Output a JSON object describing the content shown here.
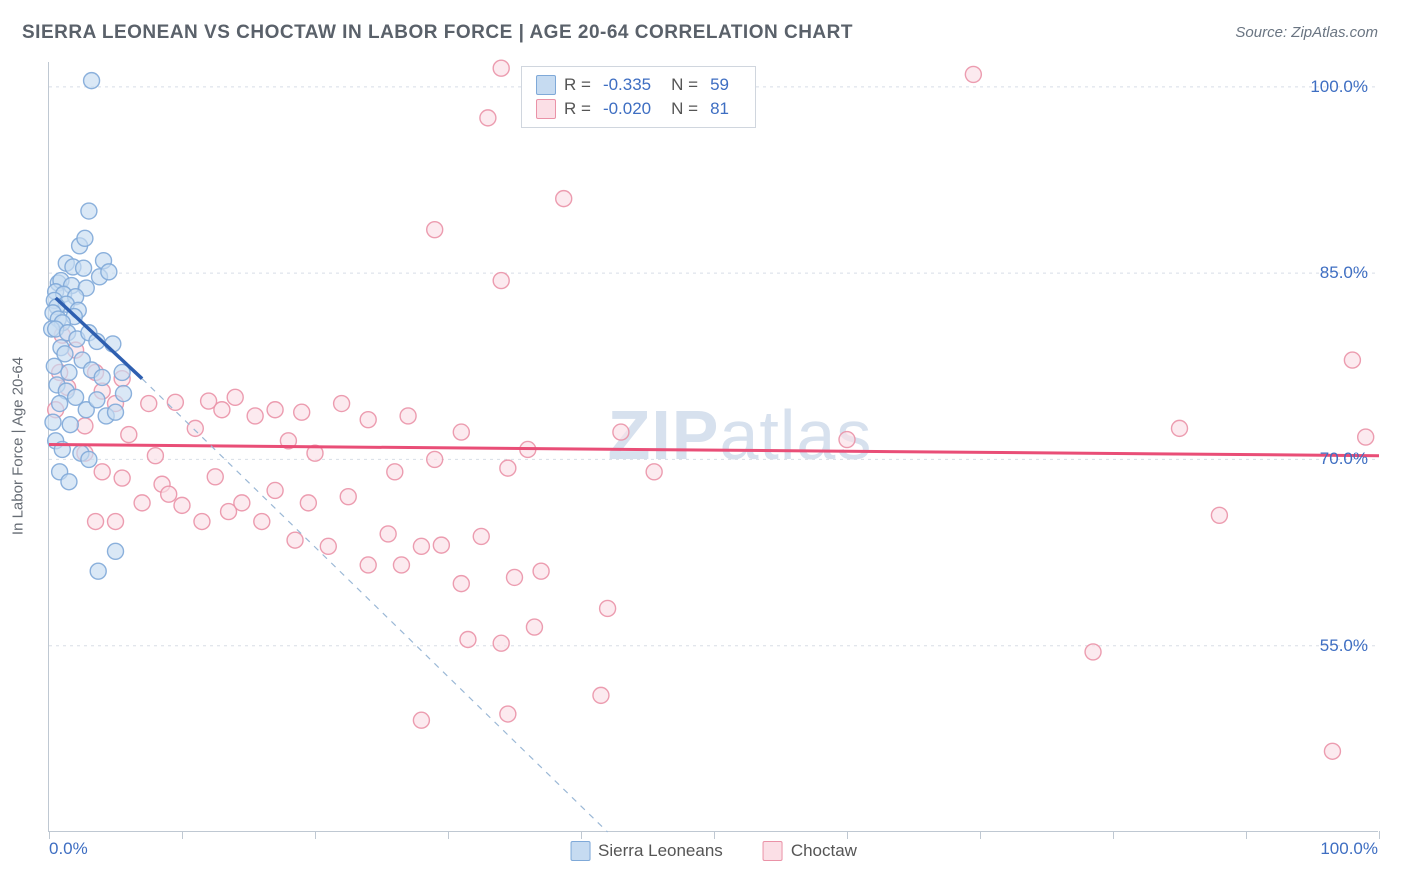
{
  "title": "SIERRA LEONEAN VS CHOCTAW IN LABOR FORCE | AGE 20-64 CORRELATION CHART",
  "source_label": "Source: ",
  "source_value": "ZipAtlas.com",
  "y_axis_label": "In Labor Force | Age 20-64",
  "chart": {
    "type": "scatter",
    "xlim": [
      0,
      100
    ],
    "ylim": [
      40,
      102
    ],
    "x_tick_step": 10,
    "y_grid": [
      55,
      70,
      85,
      100
    ],
    "x_min_label": "0.0%",
    "x_max_label": "100.0%",
    "y_tick_labels": {
      "55": "55.0%",
      "70": "70.0%",
      "85": "85.0%",
      "100": "100.0%"
    },
    "background_color": "#ffffff",
    "grid_color": "#d8dee6",
    "axis_color": "#bfc8d2",
    "marker_radius": 8,
    "marker_stroke_width": 1.4,
    "series": {
      "sierra": {
        "label": "Sierra Leoneans",
        "fill": "#c6dbf1",
        "stroke": "#7fa9d8",
        "line_color": "#2e5fb0",
        "dash_color": "#9bb8d6",
        "r_value": "-0.335",
        "n_value": "59",
        "points": [
          [
            3.2,
            100.5
          ],
          [
            3.0,
            90.0
          ],
          [
            2.3,
            87.2
          ],
          [
            2.7,
            87.8
          ],
          [
            4.1,
            86.0
          ],
          [
            1.3,
            85.8
          ],
          [
            1.8,
            85.5
          ],
          [
            2.6,
            85.4
          ],
          [
            3.8,
            84.7
          ],
          [
            4.5,
            85.1
          ],
          [
            0.7,
            84.2
          ],
          [
            0.9,
            84.4
          ],
          [
            1.7,
            84.0
          ],
          [
            2.8,
            83.8
          ],
          [
            0.5,
            83.5
          ],
          [
            1.1,
            83.3
          ],
          [
            2.0,
            83.1
          ],
          [
            0.4,
            82.8
          ],
          [
            1.3,
            82.5
          ],
          [
            0.6,
            82.3
          ],
          [
            2.2,
            82.0
          ],
          [
            0.3,
            81.8
          ],
          [
            1.9,
            81.5
          ],
          [
            0.7,
            81.3
          ],
          [
            1.0,
            81.0
          ],
          [
            0.2,
            80.5
          ],
          [
            0.5,
            80.5
          ],
          [
            1.4,
            80.2
          ],
          [
            2.1,
            79.7
          ],
          [
            3.0,
            80.2
          ],
          [
            3.6,
            79.5
          ],
          [
            0.9,
            79.0
          ],
          [
            1.2,
            78.5
          ],
          [
            2.5,
            78.0
          ],
          [
            0.4,
            77.5
          ],
          [
            1.5,
            77.0
          ],
          [
            3.2,
            77.2
          ],
          [
            4.0,
            76.6
          ],
          [
            5.5,
            77.0
          ],
          [
            4.8,
            79.3
          ],
          [
            0.6,
            76.0
          ],
          [
            1.3,
            75.5
          ],
          [
            2.0,
            75.0
          ],
          [
            0.8,
            74.5
          ],
          [
            2.8,
            74.0
          ],
          [
            3.6,
            74.8
          ],
          [
            4.3,
            73.5
          ],
          [
            0.3,
            73.0
          ],
          [
            1.6,
            72.8
          ],
          [
            5.0,
            73.8
          ],
          [
            5.6,
            75.3
          ],
          [
            0.5,
            71.5
          ],
          [
            1.0,
            70.8
          ],
          [
            2.4,
            70.5
          ],
          [
            3.0,
            70.0
          ],
          [
            0.8,
            69.0
          ],
          [
            1.5,
            68.2
          ],
          [
            5.0,
            62.6
          ],
          [
            3.7,
            61.0
          ]
        ],
        "regression_solid": {
          "x1": 0.5,
          "y1": 83.0,
          "x2": 7.0,
          "y2": 76.5
        },
        "regression_dashed": {
          "x1": 7.0,
          "y1": 76.5,
          "x2": 42.0,
          "y2": 40.0
        }
      },
      "choctaw": {
        "label": "Choctaw",
        "fill": "#fbdfe6",
        "stroke": "#ea92a7",
        "line_color": "#e94e77",
        "r_value": "-0.020",
        "n_value": "81",
        "points": [
          [
            34.0,
            101.5
          ],
          [
            33.0,
            97.5
          ],
          [
            69.5,
            101.0
          ],
          [
            38.7,
            91.0
          ],
          [
            29.0,
            88.5
          ],
          [
            34.0,
            84.4
          ],
          [
            3.5,
            77.0
          ],
          [
            5.0,
            74.5
          ],
          [
            1.0,
            80.0
          ],
          [
            2.0,
            78.8
          ],
          [
            0.8,
            77.0
          ],
          [
            1.4,
            75.8
          ],
          [
            0.5,
            74.0
          ],
          [
            2.7,
            72.7
          ],
          [
            4.0,
            75.5
          ],
          [
            5.5,
            76.5
          ],
          [
            7.5,
            74.5
          ],
          [
            6.0,
            72.0
          ],
          [
            9.5,
            74.6
          ],
          [
            11.0,
            72.5
          ],
          [
            12.0,
            74.7
          ],
          [
            13.0,
            74.0
          ],
          [
            14.0,
            75.0
          ],
          [
            15.5,
            73.5
          ],
          [
            17.0,
            74.0
          ],
          [
            18.0,
            71.5
          ],
          [
            19.0,
            73.8
          ],
          [
            20.0,
            70.5
          ],
          [
            22.0,
            74.5
          ],
          [
            24.0,
            73.2
          ],
          [
            26.0,
            69.0
          ],
          [
            27.0,
            73.5
          ],
          [
            29.0,
            70.0
          ],
          [
            31.0,
            72.2
          ],
          [
            98.0,
            78.0
          ],
          [
            85.0,
            72.5
          ],
          [
            99.0,
            71.8
          ],
          [
            43.0,
            72.2
          ],
          [
            45.5,
            69.0
          ],
          [
            34.5,
            69.3
          ],
          [
            36.0,
            70.8
          ],
          [
            2.7,
            70.5
          ],
          [
            4.0,
            69.0
          ],
          [
            5.5,
            68.5
          ],
          [
            7.0,
            66.5
          ],
          [
            8.5,
            68.0
          ],
          [
            9.0,
            67.2
          ],
          [
            10.0,
            66.3
          ],
          [
            11.5,
            65.0
          ],
          [
            12.5,
            68.6
          ],
          [
            13.5,
            65.8
          ],
          [
            14.5,
            66.5
          ],
          [
            16.0,
            65.0
          ],
          [
            17.0,
            67.5
          ],
          [
            18.5,
            63.5
          ],
          [
            19.5,
            66.5
          ],
          [
            21.0,
            63.0
          ],
          [
            22.5,
            67.0
          ],
          [
            24.0,
            61.5
          ],
          [
            25.5,
            64.0
          ],
          [
            26.5,
            61.5
          ],
          [
            28.0,
            63.0
          ],
          [
            29.5,
            63.1
          ],
          [
            31.0,
            60.0
          ],
          [
            32.5,
            63.8
          ],
          [
            35.0,
            60.5
          ],
          [
            37.0,
            61.0
          ],
          [
            34.0,
            55.2
          ],
          [
            31.5,
            55.5
          ],
          [
            36.5,
            56.5
          ],
          [
            88.0,
            65.5
          ],
          [
            78.5,
            54.5
          ],
          [
            28.0,
            49.0
          ],
          [
            34.5,
            49.5
          ],
          [
            41.5,
            51.0
          ],
          [
            96.5,
            46.5
          ],
          [
            60.0,
            71.6
          ],
          [
            5.0,
            65.0
          ],
          [
            8.0,
            70.3
          ],
          [
            3.5,
            65.0
          ],
          [
            42.0,
            58.0
          ]
        ],
        "regression": {
          "x1": 0,
          "y1": 71.2,
          "x2": 100,
          "y2": 70.3
        }
      }
    }
  },
  "legend_top": {
    "r_label": "R =",
    "n_label": "N ="
  },
  "watermark_bold": "ZIP",
  "watermark_rest": "atlas"
}
